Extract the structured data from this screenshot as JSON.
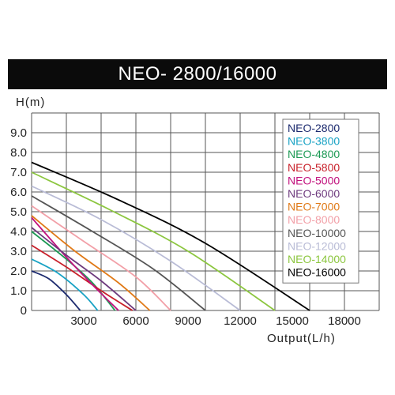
{
  "chart_data": {
    "type": "line",
    "title": "NEO- 2800/16000",
    "ylabel": "H(m)",
    "xlabel": "Output(L/h)",
    "xlim": [
      0,
      20000
    ],
    "ylim": [
      0,
      10
    ],
    "x_ticks": [
      3000,
      6000,
      9000,
      12000,
      15000,
      18000
    ],
    "x_tick_labels": [
      "3000",
      "6000",
      "9000",
      "12000",
      "15000",
      "18000"
    ],
    "y_ticks": [
      0,
      1,
      2,
      3,
      4,
      5,
      6,
      7,
      8,
      9
    ],
    "y_tick_labels": [
      "0",
      "1.0",
      "2.0",
      "3.0",
      "4.0",
      "5.0",
      "6.0",
      "7.0",
      "8.0",
      "9.0"
    ],
    "grid": true,
    "legend_position": "top-right",
    "series": [
      {
        "name": "NEO-2800",
        "color": "#1c2a6e",
        "x": [
          0,
          1000,
          2000,
          2800
        ],
        "y": [
          2.0,
          1.6,
          0.8,
          0
        ]
      },
      {
        "name": "NEO-3800",
        "color": "#18a2c4",
        "x": [
          0,
          1500,
          3000,
          3800
        ],
        "y": [
          2.6,
          1.9,
          0.8,
          0
        ]
      },
      {
        "name": "NEO-4800",
        "color": "#1e9a55",
        "x": [
          0,
          2000,
          3500,
          4800
        ],
        "y": [
          4.0,
          2.6,
          1.4,
          0
        ]
      },
      {
        "name": "NEO-5800",
        "color": "#c8202a",
        "x": [
          0,
          2000,
          4000,
          5800
        ],
        "y": [
          3.3,
          2.2,
          1.0,
          0
        ]
      },
      {
        "name": "NEO-5000",
        "color": "#c2127e",
        "x": [
          0,
          2000,
          3500,
          5000
        ],
        "y": [
          4.7,
          2.7,
          1.3,
          0
        ]
      },
      {
        "name": "NEO-6000",
        "color": "#6e3b7e",
        "x": [
          0,
          2000,
          4000,
          6000
        ],
        "y": [
          4.2,
          2.8,
          1.5,
          0
        ]
      },
      {
        "name": "NEO-7000",
        "color": "#e07a18",
        "x": [
          0,
          2500,
          5000,
          6800
        ],
        "y": [
          4.8,
          3.0,
          1.4,
          0
        ]
      },
      {
        "name": "NEO-8000",
        "color": "#f2a0a8",
        "x": [
          0,
          3000,
          6000,
          8000
        ],
        "y": [
          5.3,
          3.5,
          1.7,
          0
        ]
      },
      {
        "name": "NEO-10000",
        "color": "#555555",
        "x": [
          0,
          3500,
          7000,
          10000
        ],
        "y": [
          5.8,
          4.0,
          2.1,
          0
        ]
      },
      {
        "name": "NEO-12000",
        "color": "#b9bcd6",
        "x": [
          0,
          4000,
          8000,
          12000
        ],
        "y": [
          6.3,
          4.6,
          2.5,
          0
        ]
      },
      {
        "name": "NEO-14000",
        "color": "#8cc63f",
        "x": [
          0,
          4500,
          9000,
          14000
        ],
        "y": [
          7.0,
          5.1,
          3.0,
          0
        ]
      },
      {
        "name": "NEO-16000",
        "color": "#000000",
        "x": [
          0,
          5000,
          10000,
          16000
        ],
        "y": [
          7.5,
          5.6,
          3.4,
          0
        ]
      }
    ]
  }
}
